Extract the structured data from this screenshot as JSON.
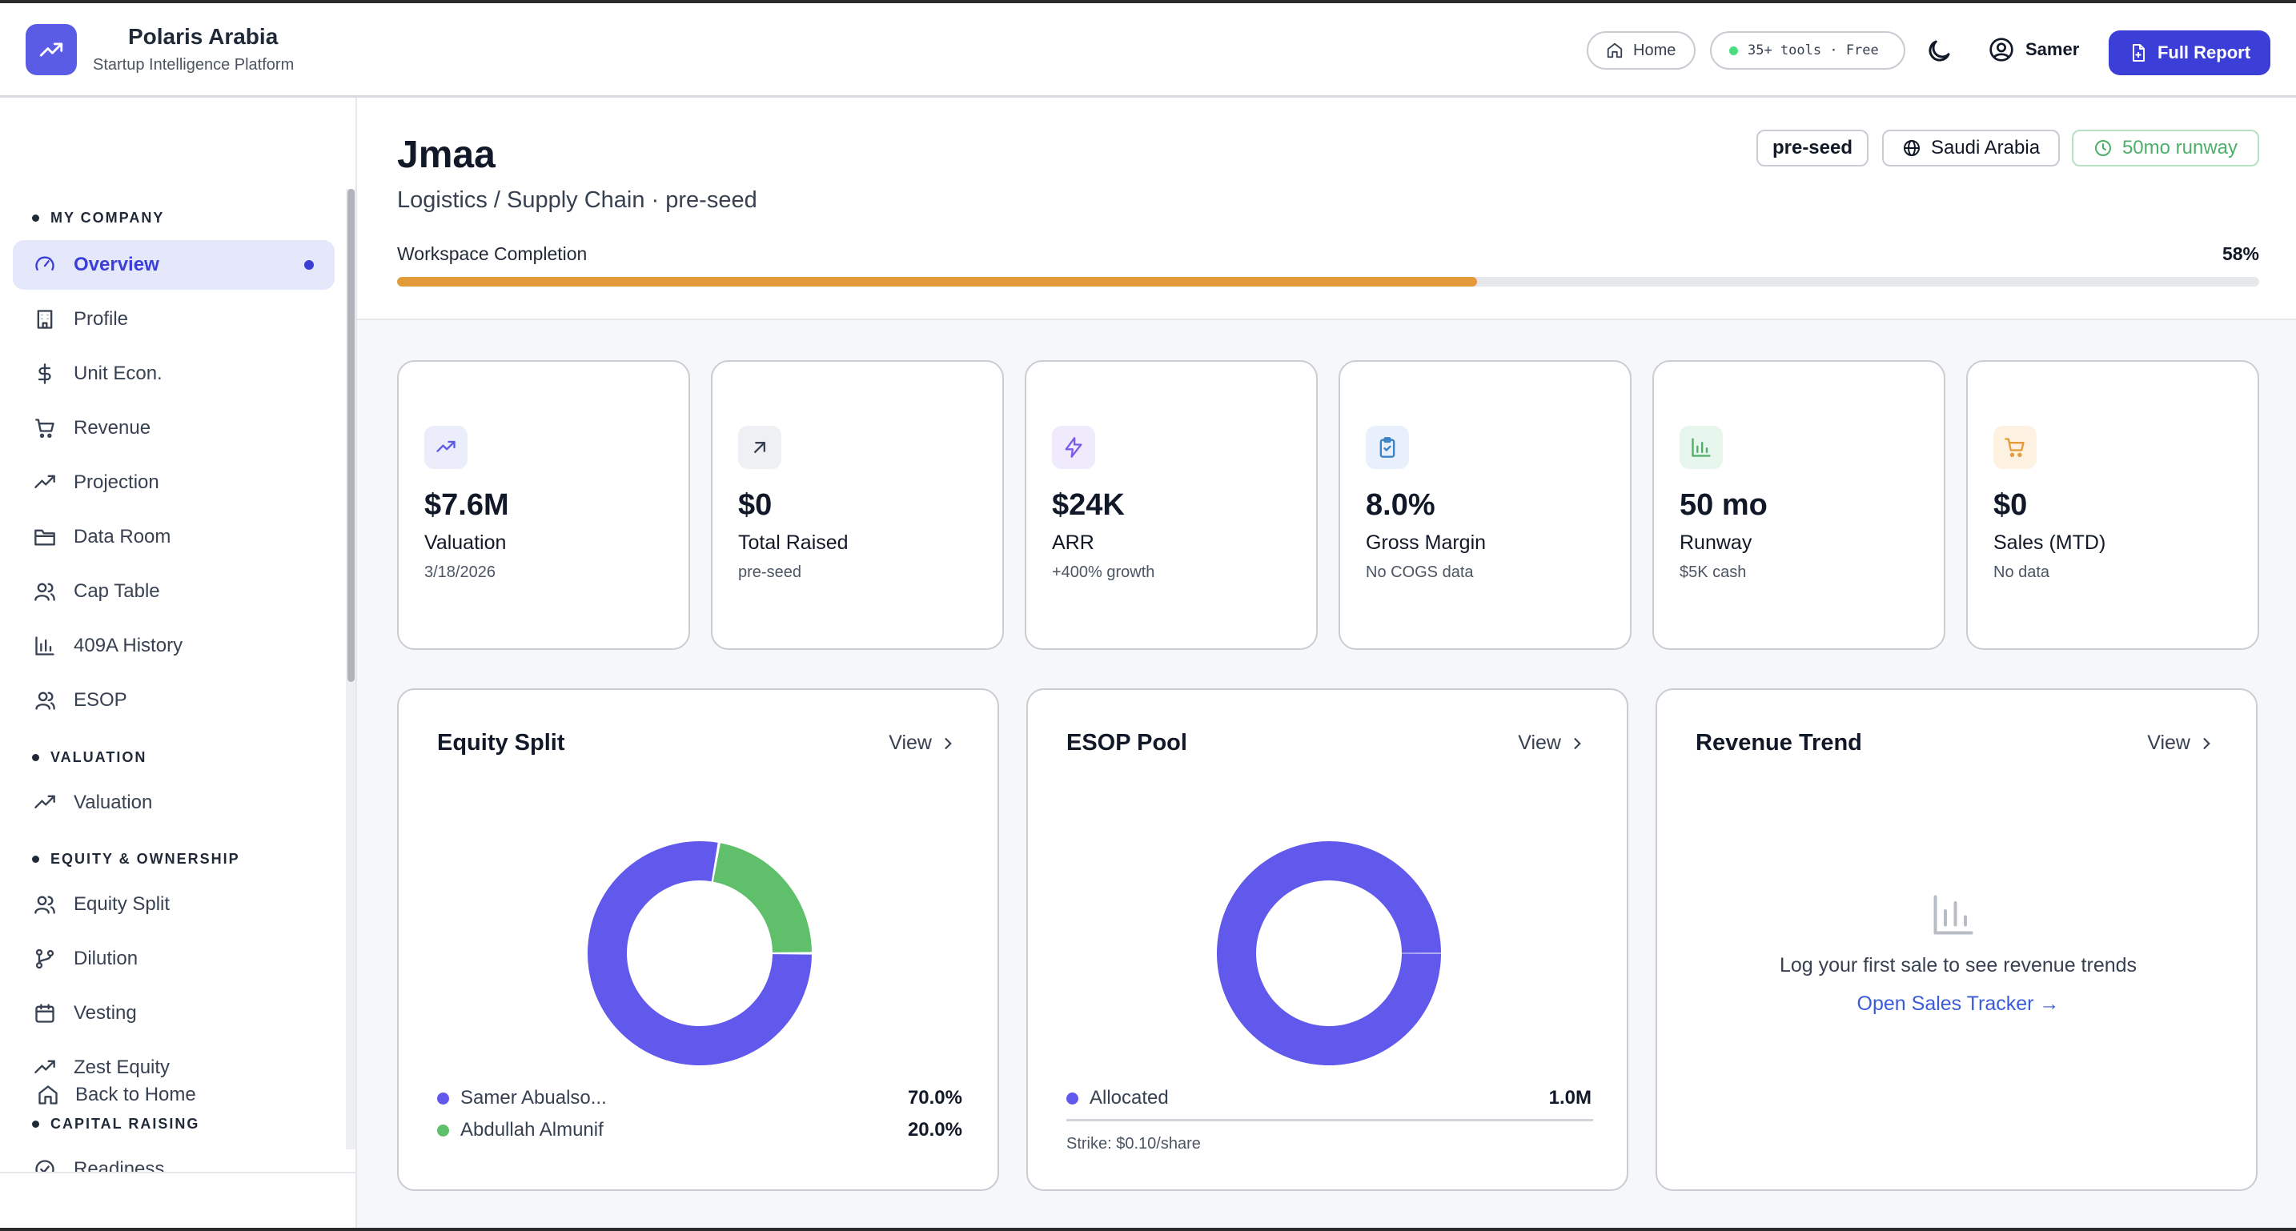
{
  "header": {
    "brand_name": "Polaris Arabia",
    "brand_sub": "Startup Intelligence Platform",
    "home_label": "Home",
    "tools_label": "35+ tools · Free",
    "user_name": "Samer",
    "full_report_label": "Full Report"
  },
  "sidebar": {
    "sections": {
      "my_company": "MY COMPANY",
      "valuation": "VALUATION",
      "equity": "EQUITY & OWNERSHIP",
      "capital": "CAPITAL RAISING"
    },
    "items": [
      {
        "label": "Overview",
        "icon": "gauge-icon"
      },
      {
        "label": "Profile",
        "icon": "building-icon"
      },
      {
        "label": "Unit Econ.",
        "icon": "dollar-icon"
      },
      {
        "label": "Revenue",
        "icon": "cart-icon"
      },
      {
        "label": "Projection",
        "icon": "trend-icon"
      },
      {
        "label": "Data Room",
        "icon": "folder-icon"
      },
      {
        "label": "Cap Table",
        "icon": "users-icon"
      },
      {
        "label": "409A History",
        "icon": "bar-chart-icon"
      },
      {
        "label": "ESOP",
        "icon": "user-check-icon"
      },
      {
        "label": "Valuation",
        "icon": "trend-icon"
      },
      {
        "label": "Equity Split",
        "icon": "users-icon"
      },
      {
        "label": "Dilution",
        "icon": "branch-icon"
      },
      {
        "label": "Vesting",
        "icon": "calendar-icon"
      },
      {
        "label": "Zest Equity",
        "icon": "trend-icon"
      },
      {
        "label": "Readiness",
        "icon": "check-icon"
      }
    ],
    "back_home": "Back to Home"
  },
  "company": {
    "name": "Jmaa",
    "sector": "Logistics / Supply Chain · pre-seed",
    "stage_badge": "pre-seed",
    "country_badge": "Saudi Arabia",
    "runway_badge": "50mo runway",
    "completion_label": "Workspace Completion",
    "completion_pct": "58%",
    "completion_fraction": 0.58
  },
  "kpis": [
    {
      "value": "$7.6M",
      "label": "Valuation",
      "sub": "3/18/2026",
      "icon": "trend-up-icon",
      "color": "#5b5ce6",
      "bg": "#ecedfb"
    },
    {
      "value": "$0",
      "label": "Total Raised",
      "sub": "pre-seed",
      "icon": "arrow-up-right-icon",
      "color": "#374151",
      "bg": "#eef0f3"
    },
    {
      "value": "$24K",
      "label": "ARR",
      "sub": "+400% growth",
      "icon": "lightning-icon",
      "color": "#7c5ce6",
      "bg": "#efeafc"
    },
    {
      "value": "8.0%",
      "label": "Gross Margin",
      "sub": "No COGS data",
      "icon": "clipboard-icon",
      "color": "#3b82c4",
      "bg": "#e8f1fb"
    },
    {
      "value": "50 mo",
      "label": "Runway",
      "sub": "$5K cash",
      "icon": "bar-chart-icon",
      "color": "#4caf6a",
      "bg": "#e7f6ec"
    },
    {
      "value": "$0",
      "label": "Sales (MTD)",
      "sub": "No data",
      "icon": "cart-icon",
      "color": "#e39b3a",
      "bg": "#fdf1e2"
    }
  ],
  "panels": {
    "equity": {
      "title": "Equity Split",
      "view": "View",
      "legend": [
        {
          "name": "Samer Abualso...",
          "pct": "70.0%",
          "color": "#6158ec"
        },
        {
          "name": "Abdullah Almunif",
          "pct": "20.0%",
          "color": "#5fbf6a"
        }
      ]
    },
    "esop": {
      "title": "ESOP Pool",
      "view": "View",
      "legend": [
        {
          "name": "Allocated",
          "value": "1.0M",
          "color": "#6158ec"
        }
      ],
      "strike": "Strike: $0.10/share"
    },
    "revenue": {
      "title": "Revenue Trend",
      "view": "View",
      "empty_msg": "Log your first sale to see revenue trends",
      "link": "Open Sales Tracker →"
    }
  },
  "chart_data": [
    {
      "type": "pie",
      "categories": [
        "Samer Abualso...",
        "Abdullah Almunif"
      ],
      "values": [
        70.0,
        20.0
      ],
      "colors": [
        "#6158ec",
        "#5fbf6a"
      ]
    },
    {
      "type": "pie",
      "categories": [
        "Allocated"
      ],
      "values": [
        1.0
      ],
      "colors": [
        "#6158ec"
      ]
    }
  ]
}
